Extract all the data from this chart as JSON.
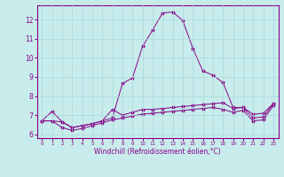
{
  "xlabel": "Windchill (Refroidissement éolien,°C)",
  "bg_color": "#c8ecec",
  "line_color": "#880088",
  "x_ticks": [
    0,
    1,
    2,
    3,
    4,
    5,
    6,
    7,
    8,
    9,
    10,
    11,
    12,
    13,
    14,
    15,
    16,
    17,
    18,
    19,
    20,
    21,
    22,
    23
  ],
  "ylim": [
    5.8,
    12.75
  ],
  "xlim": [
    -0.5,
    23.5
  ],
  "yticks": [
    6,
    7,
    8,
    9,
    10,
    11,
    12
  ],
  "line1_y": [
    6.7,
    7.2,
    6.65,
    6.35,
    6.45,
    6.55,
    6.7,
    6.85,
    8.65,
    8.95,
    10.6,
    11.45,
    12.35,
    12.4,
    11.95,
    10.5,
    9.3,
    9.1,
    8.7,
    7.4,
    7.4,
    7.05,
    7.1,
    7.6
  ],
  "line2_y": [
    6.7,
    6.7,
    6.65,
    6.35,
    6.45,
    6.55,
    6.7,
    7.3,
    7.0,
    7.15,
    7.3,
    7.3,
    7.35,
    7.4,
    7.45,
    7.5,
    7.55,
    7.6,
    7.65,
    7.35,
    7.4,
    6.85,
    6.9,
    7.6
  ],
  "line3_y": [
    6.7,
    6.7,
    6.35,
    6.2,
    6.3,
    6.45,
    6.6,
    6.75,
    6.85,
    6.95,
    7.05,
    7.1,
    7.15,
    7.2,
    7.25,
    7.3,
    7.35,
    7.4,
    7.3,
    7.15,
    7.25,
    6.7,
    6.75,
    7.5
  ],
  "grid_color": "#a8d8d8",
  "spine_color": "#880088",
  "tick_labelsize": 5,
  "xlabel_fontsize": 5.5
}
